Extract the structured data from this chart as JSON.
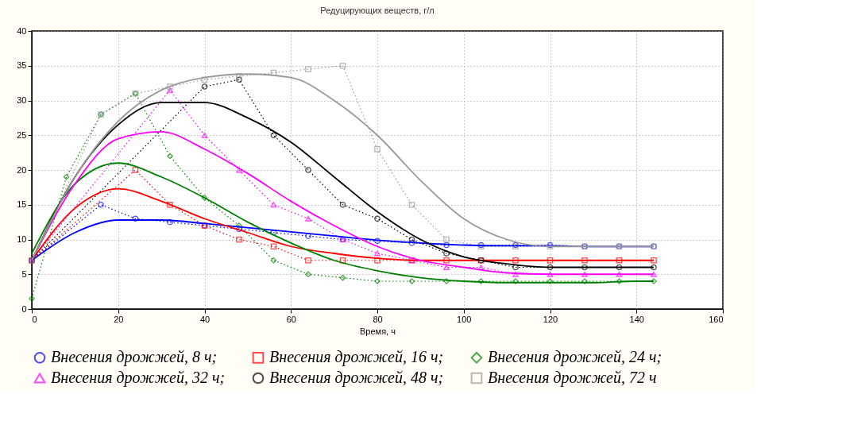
{
  "chart_data": {
    "type": "line",
    "title": "Редуцирующих веществ, г/л",
    "xlabel": "Время, ч",
    "xlim": [
      0,
      160
    ],
    "xticks": [
      0,
      20,
      40,
      60,
      80,
      100,
      120,
      140,
      160
    ],
    "ylim": [
      0,
      40
    ],
    "yticks": [
      0,
      5,
      10,
      15,
      20,
      25,
      30,
      35,
      40
    ],
    "grid": true,
    "legend": "bottom",
    "x": [
      0,
      8,
      16,
      24,
      32,
      40,
      48,
      56,
      64,
      72,
      80,
      88,
      96,
      104,
      112,
      120,
      128,
      136,
      144
    ],
    "series": [
      {
        "name": "Внесения дрожжей, 8 ч;",
        "color": "#0000ff",
        "marker": "circle",
        "line_style": "dotted",
        "values": [
          7,
          null,
          15,
          13,
          12.5,
          12,
          11.5,
          11,
          10.5,
          10,
          9.8,
          9.5,
          9.2,
          9.2,
          9.2,
          9.2,
          9,
          9,
          9
        ]
      },
      {
        "name": "Внесения дрожжей, 16 ч;",
        "color": "#ff0000",
        "marker": "square",
        "line_style": "dotted",
        "values": [
          7,
          null,
          null,
          20,
          15,
          12,
          10,
          9,
          7,
          7,
          7,
          7,
          7,
          7,
          7,
          7,
          7,
          7,
          7
        ]
      },
      {
        "name": "Внесения дрожжей, 24 ч;",
        "color": "#008000",
        "marker": "diamond",
        "line_style": "dotted",
        "values": [
          1.5,
          19,
          28,
          31,
          22,
          16,
          12,
          7,
          5,
          4.5,
          4,
          4,
          4,
          4,
          4,
          4,
          4,
          4,
          4
        ]
      },
      {
        "name": "Внесения дрожжей, 32 ч;",
        "color": "#ff00ff",
        "marker": "triangle",
        "line_style": "dotted",
        "values": [
          7,
          null,
          null,
          null,
          31.5,
          25,
          20,
          15,
          13,
          10,
          8,
          7,
          6,
          6,
          5,
          5,
          5,
          5,
          5
        ]
      },
      {
        "name": "Внесения дрожжей, 48 ч;",
        "color": "#000000",
        "marker": "circle",
        "line_style": "dotted",
        "values": [
          7,
          null,
          null,
          null,
          null,
          32,
          33,
          25,
          20,
          15,
          13,
          10,
          8,
          7,
          6,
          6,
          6,
          6,
          6
        ]
      },
      {
        "name": "Внесения дрожжей, 72 ч",
        "color": "#999999",
        "marker": "square",
        "line_style": "dotted",
        "values": [
          7,
          null,
          28,
          31,
          32,
          33,
          33.5,
          34,
          34.5,
          35,
          23,
          15,
          10,
          9,
          9,
          9,
          9,
          9,
          9
        ]
      },
      {
        "type": "line",
        "color": "#0000ff",
        "line_style": "solid",
        "x": [
          0,
          10,
          20,
          30,
          40,
          50,
          60,
          70,
          80,
          90,
          100,
          110,
          120,
          130,
          140,
          144
        ],
        "values": [
          7,
          11,
          12.8,
          12.8,
          12.3,
          11.7,
          11.1,
          10.5,
          9.9,
          9.5,
          9.2,
          9.1,
          9.1,
          9,
          9,
          9
        ]
      },
      {
        "type": "line",
        "color": "#ff0000",
        "line_style": "solid",
        "x": [
          0,
          10,
          20,
          30,
          40,
          50,
          60,
          70,
          80,
          90,
          100,
          110,
          120,
          130,
          140,
          144
        ],
        "values": [
          7,
          14.5,
          17.3,
          15.5,
          13,
          11,
          9,
          8,
          7.3,
          7,
          7,
          7,
          7,
          7,
          7,
          7
        ]
      },
      {
        "type": "line",
        "color": "#008000",
        "line_style": "solid",
        "x": [
          0,
          10,
          20,
          30,
          40,
          50,
          60,
          70,
          80,
          90,
          100,
          110,
          120,
          130,
          140,
          144
        ],
        "values": [
          8,
          18,
          21,
          19,
          16,
          12.5,
          9.5,
          7,
          5.5,
          4.5,
          4,
          3.8,
          3.8,
          3.8,
          4,
          4
        ]
      },
      {
        "type": "line",
        "color": "#ff00ff",
        "line_style": "solid",
        "x": [
          0,
          10,
          20,
          30,
          40,
          50,
          60,
          70,
          80,
          90,
          100,
          110,
          120,
          130,
          140,
          144
        ],
        "values": [
          7,
          18,
          24.5,
          25.5,
          23,
          19.5,
          15.5,
          12,
          9,
          7,
          6,
          5.2,
          5,
          5,
          5,
          5
        ]
      },
      {
        "type": "line",
        "color": "#000000",
        "line_style": "solid",
        "x": [
          0,
          10,
          20,
          30,
          40,
          50,
          60,
          70,
          80,
          90,
          100,
          110,
          120,
          130,
          140,
          144
        ],
        "values": [
          7,
          19,
          26.5,
          29.7,
          29.7,
          27.5,
          24,
          19,
          14,
          10,
          7.5,
          6.5,
          6,
          6,
          6,
          6
        ]
      },
      {
        "type": "line",
        "color": "#999999",
        "line_style": "solid",
        "x": [
          0,
          10,
          20,
          30,
          40,
          50,
          60,
          70,
          80,
          90,
          100,
          110,
          120,
          130,
          140,
          144
        ],
        "values": [
          7,
          19,
          27,
          31.5,
          33.3,
          33.8,
          33.3,
          30,
          25,
          18.5,
          13,
          10,
          9,
          9,
          9,
          9
        ]
      }
    ]
  }
}
